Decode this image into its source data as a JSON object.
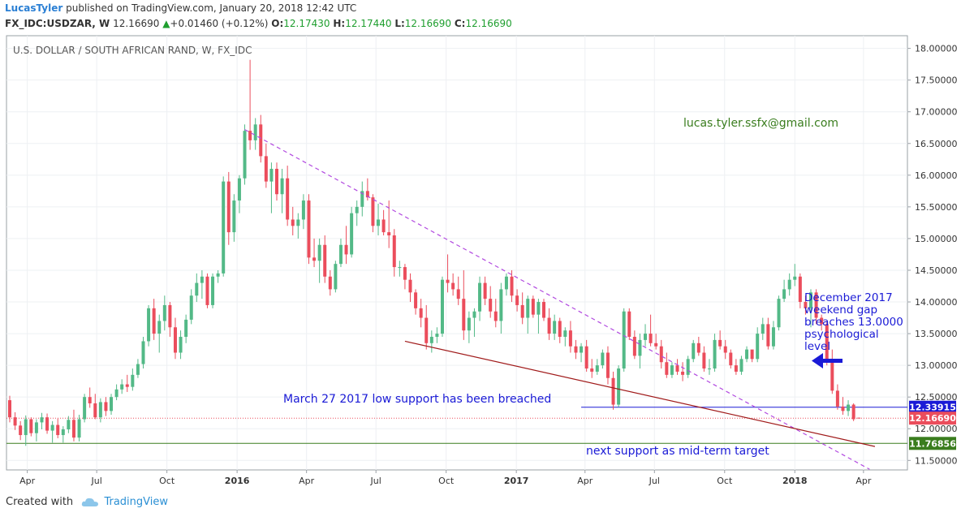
{
  "header": {
    "user": "LucasTyler",
    "published_text": "published on TradingView.com, January 20, 2018 12:42 UTC",
    "symbol": "FX_IDC:USDZAR, W",
    "last": "12.16690",
    "change": "+0.01460 (+0.12%)",
    "o_label": "O:",
    "o": "12.17430",
    "h_label": "H:",
    "h": "12.17440",
    "l_label": "L:",
    "l": "12.16690",
    "c_label": "C:",
    "c": "12.16690"
  },
  "footer": {
    "created_with": "Created with",
    "brand": "TradingView"
  },
  "colors": {
    "up": "#53b987",
    "down": "#eb4d5c",
    "accent": "#2a7fd4",
    "wedge_upper": "#b24ae0",
    "wedge_lower": "#a01a1a"
  },
  "chart_data": {
    "type": "candlestick",
    "title": "U.S. DOLLAR / SOUTH AFRICAN RAND, W, FX_IDC",
    "ylim": [
      11.35,
      18.2
    ],
    "y_ticks": [
      "11.50000",
      "12.00000",
      "12.50000",
      "13.00000",
      "13.50000",
      "14.00000",
      "14.50000",
      "15.00000",
      "15.50000",
      "16.00000",
      "16.50000",
      "17.00000",
      "17.50000",
      "18.00000"
    ],
    "x_labels": [
      "Apr",
      "Jul",
      "Oct",
      "2016",
      "Apr",
      "Jul",
      "Oct",
      "2017",
      "Apr",
      "Jul",
      "Oct",
      "2018",
      "Apr"
    ],
    "price_labels": [
      {
        "value": 12.33915,
        "text": "12.33915",
        "color": "#1a1ad6"
      },
      {
        "value": 12.1669,
        "text": "12.16690",
        "color": "#eb4d5c"
      },
      {
        "value": 11.76856,
        "text": "11.76856",
        "color": "#3a7d1e"
      }
    ],
    "support_lines": [
      {
        "name": "march-2017-low",
        "value": 12.33915,
        "from_date": "2017-03-27",
        "color": "#1a1ad6"
      },
      {
        "name": "mid-term-target",
        "value": 11.76856,
        "color": "#3a7d1e"
      },
      {
        "name": "last-price",
        "value": 12.1669,
        "color": "#eb4d5c"
      }
    ],
    "trendlines": [
      {
        "name": "upper-wedge",
        "style": "dashed",
        "from": {
          "date": "2016-01-11",
          "price": 16.72
        },
        "to": {
          "date": "2018-04-09",
          "price": 11.36
        }
      },
      {
        "name": "lower-wedge",
        "style": "solid",
        "from": {
          "date": "2016-08-08",
          "price": 13.38
        },
        "to": {
          "date": "2018-04-16",
          "price": 11.72
        }
      }
    ],
    "annotations": [
      {
        "text": "lucas.tyler.ssfx@gmail.com",
        "color": "#3a7d1e"
      },
      {
        "text": "December 2017 weekend gap breaches 13.0000 psychological level",
        "color": "#1a1ad6"
      },
      {
        "text": "March 27 2017 low support has been breached",
        "color": "#1a1ad6"
      },
      {
        "text": "next support as mid-term target",
        "color": "#1a1ad6"
      }
    ],
    "candles": [
      {
        "o": 12.45,
        "h": 12.52,
        "l": 12.1,
        "c": 12.18
      },
      {
        "o": 12.18,
        "h": 12.26,
        "l": 11.98,
        "c": 12.05
      },
      {
        "o": 12.05,
        "h": 12.12,
        "l": 11.82,
        "c": 11.9
      },
      {
        "o": 11.9,
        "h": 12.21,
        "l": 11.73,
        "c": 12.15
      },
      {
        "o": 12.15,
        "h": 12.18,
        "l": 11.88,
        "c": 11.93
      },
      {
        "o": 11.93,
        "h": 12.15,
        "l": 11.8,
        "c": 12.1
      },
      {
        "o": 12.1,
        "h": 12.25,
        "l": 11.99,
        "c": 12.18
      },
      {
        "o": 12.18,
        "h": 12.24,
        "l": 11.92,
        "c": 11.97
      },
      {
        "o": 11.97,
        "h": 12.12,
        "l": 11.78,
        "c": 12.06
      },
      {
        "o": 12.06,
        "h": 12.16,
        "l": 11.85,
        "c": 11.9
      },
      {
        "o": 11.9,
        "h": 12.04,
        "l": 11.78,
        "c": 11.99
      },
      {
        "o": 11.99,
        "h": 12.2,
        "l": 11.93,
        "c": 12.14
      },
      {
        "o": 12.14,
        "h": 12.3,
        "l": 11.8,
        "c": 11.86
      },
      {
        "o": 11.86,
        "h": 12.22,
        "l": 11.8,
        "c": 12.15
      },
      {
        "o": 12.15,
        "h": 12.55,
        "l": 12.1,
        "c": 12.5
      },
      {
        "o": 12.5,
        "h": 12.65,
        "l": 12.33,
        "c": 12.4
      },
      {
        "o": 12.4,
        "h": 12.55,
        "l": 12.15,
        "c": 12.18
      },
      {
        "o": 12.18,
        "h": 12.48,
        "l": 12.1,
        "c": 12.42
      },
      {
        "o": 12.42,
        "h": 12.5,
        "l": 12.2,
        "c": 12.28
      },
      {
        "o": 12.28,
        "h": 12.55,
        "l": 12.22,
        "c": 12.5
      },
      {
        "o": 12.5,
        "h": 12.7,
        "l": 12.45,
        "c": 12.62
      },
      {
        "o": 12.62,
        "h": 12.78,
        "l": 12.55,
        "c": 12.7
      },
      {
        "o": 12.7,
        "h": 12.85,
        "l": 12.58,
        "c": 12.66
      },
      {
        "o": 12.66,
        "h": 12.95,
        "l": 12.6,
        "c": 12.85
      },
      {
        "o": 12.85,
        "h": 13.1,
        "l": 12.8,
        "c": 13.02
      },
      {
        "o": 13.02,
        "h": 13.45,
        "l": 12.95,
        "c": 13.38
      },
      {
        "o": 13.38,
        "h": 13.95,
        "l": 13.3,
        "c": 13.9
      },
      {
        "o": 13.9,
        "h": 14.05,
        "l": 13.4,
        "c": 13.5
      },
      {
        "o": 13.5,
        "h": 13.8,
        "l": 13.2,
        "c": 13.7
      },
      {
        "o": 13.7,
        "h": 14.1,
        "l": 13.55,
        "c": 13.95
      },
      {
        "o": 13.95,
        "h": 14.0,
        "l": 13.45,
        "c": 13.6
      },
      {
        "o": 13.6,
        "h": 13.75,
        "l": 13.1,
        "c": 13.2
      },
      {
        "o": 13.2,
        "h": 13.55,
        "l": 13.1,
        "c": 13.45
      },
      {
        "o": 13.45,
        "h": 13.8,
        "l": 13.35,
        "c": 13.72
      },
      {
        "o": 13.72,
        "h": 14.2,
        "l": 13.65,
        "c": 14.1
      },
      {
        "o": 14.1,
        "h": 14.45,
        "l": 14.0,
        "c": 14.3
      },
      {
        "o": 14.3,
        "h": 14.5,
        "l": 14.05,
        "c": 14.4
      },
      {
        "o": 14.4,
        "h": 14.45,
        "l": 13.9,
        "c": 13.95
      },
      {
        "o": 13.95,
        "h": 14.45,
        "l": 13.9,
        "c": 14.4
      },
      {
        "o": 14.4,
        "h": 14.5,
        "l": 14.3,
        "c": 14.45
      },
      {
        "o": 14.45,
        "h": 15.98,
        "l": 14.4,
        "c": 15.9
      },
      {
        "o": 15.9,
        "h": 16.05,
        "l": 14.9,
        "c": 15.1
      },
      {
        "o": 15.1,
        "h": 15.7,
        "l": 14.95,
        "c": 15.6
      },
      {
        "o": 15.6,
        "h": 16.0,
        "l": 15.4,
        "c": 15.95
      },
      {
        "o": 15.95,
        "h": 16.8,
        "l": 15.85,
        "c": 16.7
      },
      {
        "o": 16.7,
        "h": 17.82,
        "l": 16.4,
        "c": 16.55
      },
      {
        "o": 16.55,
        "h": 16.9,
        "l": 16.4,
        "c": 16.8
      },
      {
        "o": 16.8,
        "h": 16.95,
        "l": 16.2,
        "c": 16.3
      },
      {
        "o": 16.3,
        "h": 16.5,
        "l": 15.8,
        "c": 15.9
      },
      {
        "o": 15.9,
        "h": 16.2,
        "l": 15.4,
        "c": 16.1
      },
      {
        "o": 16.1,
        "h": 16.2,
        "l": 15.6,
        "c": 15.7
      },
      {
        "o": 15.7,
        "h": 16.1,
        "l": 15.4,
        "c": 15.95
      },
      {
        "o": 15.95,
        "h": 16.15,
        "l": 15.2,
        "c": 15.3
      },
      {
        "o": 15.3,
        "h": 15.5,
        "l": 15.05,
        "c": 15.2
      },
      {
        "o": 15.2,
        "h": 15.4,
        "l": 15.0,
        "c": 15.3
      },
      {
        "o": 15.3,
        "h": 15.7,
        "l": 15.15,
        "c": 15.6
      },
      {
        "o": 15.6,
        "h": 15.7,
        "l": 14.6,
        "c": 14.7
      },
      {
        "o": 14.7,
        "h": 15.0,
        "l": 14.55,
        "c": 14.65
      },
      {
        "o": 14.65,
        "h": 15.0,
        "l": 14.3,
        "c": 14.9
      },
      {
        "o": 14.9,
        "h": 15.05,
        "l": 14.3,
        "c": 14.4
      },
      {
        "o": 14.4,
        "h": 14.5,
        "l": 14.1,
        "c": 14.2
      },
      {
        "o": 14.2,
        "h": 14.65,
        "l": 14.15,
        "c": 14.6
      },
      {
        "o": 14.6,
        "h": 15.0,
        "l": 14.55,
        "c": 14.9
      },
      {
        "o": 14.9,
        "h": 15.2,
        "l": 14.6,
        "c": 14.75
      },
      {
        "o": 14.75,
        "h": 15.5,
        "l": 14.7,
        "c": 15.4
      },
      {
        "o": 15.4,
        "h": 15.6,
        "l": 15.2,
        "c": 15.5
      },
      {
        "o": 15.5,
        "h": 15.9,
        "l": 15.35,
        "c": 15.75
      },
      {
        "o": 15.75,
        "h": 15.95,
        "l": 15.6,
        "c": 15.65
      },
      {
        "o": 15.65,
        "h": 15.7,
        "l": 15.1,
        "c": 15.2
      },
      {
        "o": 15.2,
        "h": 15.55,
        "l": 15.05,
        "c": 15.3
      },
      {
        "o": 15.3,
        "h": 15.45,
        "l": 15.05,
        "c": 15.1
      },
      {
        "o": 15.1,
        "h": 15.6,
        "l": 14.85,
        "c": 15.05
      },
      {
        "o": 15.05,
        "h": 15.15,
        "l": 14.4,
        "c": 14.55
      },
      {
        "o": 14.55,
        "h": 14.65,
        "l": 14.4,
        "c": 14.55
      },
      {
        "o": 14.55,
        "h": 14.6,
        "l": 14.2,
        "c": 14.35
      },
      {
        "o": 14.35,
        "h": 14.45,
        "l": 14.0,
        "c": 14.15
      },
      {
        "o": 14.15,
        "h": 14.2,
        "l": 13.8,
        "c": 13.9
      },
      {
        "o": 13.9,
        "h": 14.05,
        "l": 13.6,
        "c": 13.75
      },
      {
        "o": 13.75,
        "h": 13.95,
        "l": 13.25,
        "c": 13.35
      },
      {
        "o": 13.35,
        "h": 13.55,
        "l": 13.2,
        "c": 13.45
      },
      {
        "o": 13.45,
        "h": 13.6,
        "l": 13.35,
        "c": 13.5
      },
      {
        "o": 13.5,
        "h": 14.4,
        "l": 13.45,
        "c": 14.35
      },
      {
        "o": 14.35,
        "h": 14.75,
        "l": 14.15,
        "c": 14.3
      },
      {
        "o": 14.3,
        "h": 14.45,
        "l": 14.1,
        "c": 14.2
      },
      {
        "o": 14.2,
        "h": 14.4,
        "l": 13.95,
        "c": 14.05
      },
      {
        "o": 14.05,
        "h": 14.5,
        "l": 13.4,
        "c": 13.55
      },
      {
        "o": 13.55,
        "h": 13.85,
        "l": 13.35,
        "c": 13.75
      },
      {
        "o": 13.75,
        "h": 13.9,
        "l": 13.45,
        "c": 13.85
      },
      {
        "o": 13.85,
        "h": 14.4,
        "l": 13.7,
        "c": 14.3
      },
      {
        "o": 14.3,
        "h": 14.4,
        "l": 13.95,
        "c": 14.05
      },
      {
        "o": 14.05,
        "h": 14.25,
        "l": 13.75,
        "c": 13.85
      },
      {
        "o": 13.85,
        "h": 14.05,
        "l": 13.6,
        "c": 13.7
      },
      {
        "o": 13.7,
        "h": 14.3,
        "l": 13.5,
        "c": 14.2
      },
      {
        "o": 14.2,
        "h": 14.45,
        "l": 14.1,
        "c": 14.4
      },
      {
        "o": 14.4,
        "h": 14.5,
        "l": 14.0,
        "c": 14.1
      },
      {
        "o": 14.1,
        "h": 14.2,
        "l": 13.85,
        "c": 13.95
      },
      {
        "o": 13.95,
        "h": 14.15,
        "l": 13.65,
        "c": 13.75
      },
      {
        "o": 13.75,
        "h": 14.1,
        "l": 13.5,
        "c": 14.05
      },
      {
        "o": 14.05,
        "h": 14.1,
        "l": 13.75,
        "c": 13.8
      },
      {
        "o": 13.8,
        "h": 14.05,
        "l": 13.5,
        "c": 14.0
      },
      {
        "o": 14.0,
        "h": 14.05,
        "l": 13.7,
        "c": 13.75
      },
      {
        "o": 13.75,
        "h": 13.9,
        "l": 13.4,
        "c": 13.5
      },
      {
        "o": 13.5,
        "h": 13.8,
        "l": 13.4,
        "c": 13.7
      },
      {
        "o": 13.7,
        "h": 13.75,
        "l": 13.35,
        "c": 13.45
      },
      {
        "o": 13.45,
        "h": 13.6,
        "l": 13.3,
        "c": 13.55
      },
      {
        "o": 13.55,
        "h": 13.7,
        "l": 13.2,
        "c": 13.3
      },
      {
        "o": 13.3,
        "h": 13.4,
        "l": 13.1,
        "c": 13.2
      },
      {
        "o": 13.2,
        "h": 13.35,
        "l": 13.05,
        "c": 13.3
      },
      {
        "o": 13.3,
        "h": 13.4,
        "l": 12.9,
        "c": 12.95
      },
      {
        "o": 12.95,
        "h": 13.1,
        "l": 12.8,
        "c": 12.9
      },
      {
        "o": 12.9,
        "h": 13.1,
        "l": 12.85,
        "c": 13.0
      },
      {
        "o": 13.0,
        "h": 13.25,
        "l": 12.95,
        "c": 13.2
      },
      {
        "o": 13.2,
        "h": 13.3,
        "l": 12.7,
        "c": 12.8
      },
      {
        "o": 12.8,
        "h": 12.9,
        "l": 12.3,
        "c": 12.38
      },
      {
        "o": 12.38,
        "h": 13.0,
        "l": 12.34,
        "c": 12.95
      },
      {
        "o": 12.95,
        "h": 13.9,
        "l": 12.9,
        "c": 13.85
      },
      {
        "o": 13.85,
        "h": 13.9,
        "l": 13.4,
        "c": 13.45
      },
      {
        "o": 13.45,
        "h": 13.55,
        "l": 13.1,
        "c": 13.15
      },
      {
        "o": 13.15,
        "h": 13.5,
        "l": 12.95,
        "c": 13.4
      },
      {
        "o": 13.4,
        "h": 13.65,
        "l": 13.3,
        "c": 13.5
      },
      {
        "o": 13.5,
        "h": 13.8,
        "l": 13.3,
        "c": 13.35
      },
      {
        "o": 13.35,
        "h": 13.5,
        "l": 13.25,
        "c": 13.3
      },
      {
        "o": 13.3,
        "h": 13.4,
        "l": 12.95,
        "c": 13.05
      },
      {
        "o": 13.05,
        "h": 13.2,
        "l": 12.8,
        "c": 12.85
      },
      {
        "o": 12.85,
        "h": 13.05,
        "l": 12.8,
        "c": 13.0
      },
      {
        "o": 13.0,
        "h": 13.1,
        "l": 12.85,
        "c": 12.9
      },
      {
        "o": 12.9,
        "h": 13.05,
        "l": 12.75,
        "c": 12.85
      },
      {
        "o": 12.85,
        "h": 13.15,
        "l": 12.8,
        "c": 13.1
      },
      {
        "o": 13.1,
        "h": 13.4,
        "l": 13.05,
        "c": 13.35
      },
      {
        "o": 13.35,
        "h": 13.45,
        "l": 13.15,
        "c": 13.2
      },
      {
        "o": 13.2,
        "h": 13.3,
        "l": 12.9,
        "c": 12.95
      },
      {
        "o": 12.95,
        "h": 13.1,
        "l": 12.85,
        "c": 12.95
      },
      {
        "o": 12.95,
        "h": 13.5,
        "l": 12.9,
        "c": 13.4
      },
      {
        "o": 13.4,
        "h": 13.55,
        "l": 13.25,
        "c": 13.3
      },
      {
        "o": 13.3,
        "h": 13.4,
        "l": 13.1,
        "c": 13.2
      },
      {
        "o": 13.2,
        "h": 13.25,
        "l": 12.95,
        "c": 13.0
      },
      {
        "o": 13.0,
        "h": 13.1,
        "l": 12.85,
        "c": 12.9
      },
      {
        "o": 12.9,
        "h": 13.15,
        "l": 12.85,
        "c": 13.1
      },
      {
        "o": 13.1,
        "h": 13.3,
        "l": 13.05,
        "c": 13.25
      },
      {
        "o": 13.25,
        "h": 13.2,
        "l": 13.05,
        "c": 13.1
      },
      {
        "o": 13.1,
        "h": 13.6,
        "l": 13.05,
        "c": 13.5
      },
      {
        "o": 13.5,
        "h": 13.75,
        "l": 13.4,
        "c": 13.65
      },
      {
        "o": 13.65,
        "h": 13.75,
        "l": 13.25,
        "c": 13.3
      },
      {
        "o": 13.3,
        "h": 13.7,
        "l": 13.25,
        "c": 13.6
      },
      {
        "o": 13.6,
        "h": 14.1,
        "l": 13.55,
        "c": 14.05
      },
      {
        "o": 14.05,
        "h": 14.35,
        "l": 14.0,
        "c": 14.2
      },
      {
        "o": 14.2,
        "h": 14.45,
        "l": 14.1,
        "c": 14.35
      },
      {
        "o": 14.35,
        "h": 14.6,
        "l": 14.25,
        "c": 14.4
      },
      {
        "o": 14.4,
        "h": 14.45,
        "l": 13.9,
        "c": 14.0
      },
      {
        "o": 14.0,
        "h": 14.1,
        "l": 13.8,
        "c": 13.9
      },
      {
        "o": 13.9,
        "h": 14.2,
        "l": 13.6,
        "c": 14.15
      },
      {
        "o": 14.15,
        "h": 14.2,
        "l": 13.65,
        "c": 13.75
      },
      {
        "o": 13.75,
        "h": 13.8,
        "l": 13.55,
        "c": 13.65
      },
      {
        "o": 13.65,
        "h": 13.7,
        "l": 13.0,
        "c": 13.1
      },
      {
        "o": 13.1,
        "h": 13.25,
        "l": 12.55,
        "c": 12.6
      },
      {
        "o": 12.6,
        "h": 12.7,
        "l": 12.3,
        "c": 12.35
      },
      {
        "o": 12.35,
        "h": 12.5,
        "l": 12.22,
        "c": 12.28
      },
      {
        "o": 12.28,
        "h": 12.45,
        "l": 12.2,
        "c": 12.38
      },
      {
        "o": 12.38,
        "h": 12.4,
        "l": 12.12,
        "c": 12.15
      },
      {
        "o": 12.174,
        "h": 12.1744,
        "l": 12.1669,
        "c": 12.1669
      }
    ]
  }
}
